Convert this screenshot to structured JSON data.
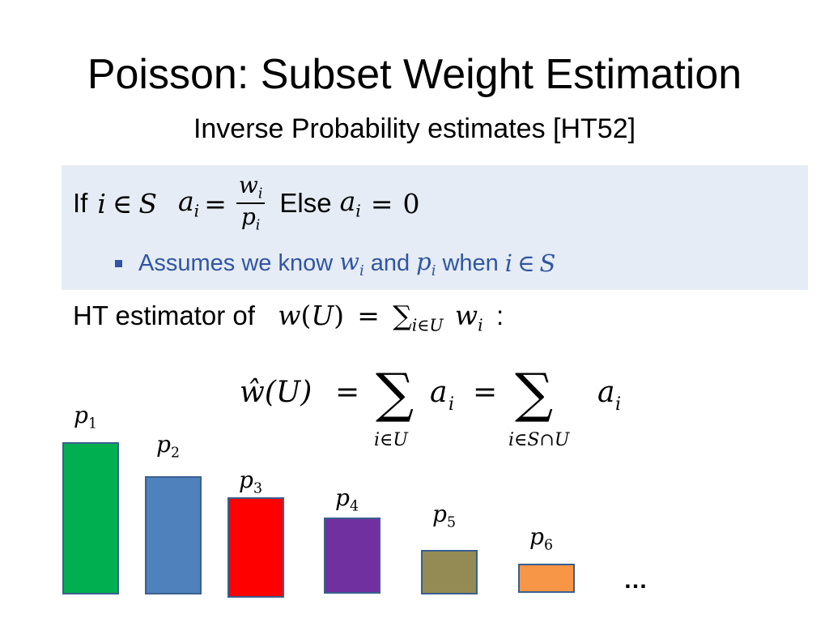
{
  "title": "Poisson: Subset Weight Estimation",
  "subtitle": "Inverse Probability estimates [HT52]",
  "rule": {
    "if_word": "If",
    "cond_var": "i",
    "cond_op": "∈",
    "cond_set": "S",
    "a_var": "a",
    "index": "i",
    "equals": "=",
    "num_var": "w",
    "den_var": "p",
    "else_word": "Else",
    "zero": "0"
  },
  "bullet": {
    "text1": "Assumes we know",
    "w": "w",
    "index": "i",
    "and_word": "and",
    "p": "p",
    "when_word": "when",
    "i": "i",
    "in": "∈",
    "S": "S"
  },
  "estimator": {
    "prefix": "HT estimator of",
    "w": "w",
    "paren_open": "(",
    "U": "U",
    "paren_close": ")",
    "equals": "=",
    "sum": "∑",
    "sub_range": "i∈U",
    "term": "w",
    "index": "i",
    "colon": ":"
  },
  "formula": {
    "lhs": "ŵ(U)",
    "eq1": "=",
    "sum": "∑",
    "term1": "a",
    "index": "i",
    "range1": "i∈U",
    "eq2": "=",
    "range2": "i∈S∩U",
    "term2": "a"
  },
  "bars": [
    {
      "label": "p",
      "sub": "1",
      "color": "#00b050"
    },
    {
      "label": "p",
      "sub": "2",
      "color": "#4f81bd"
    },
    {
      "label": "p",
      "sub": "3",
      "color": "#ff0000"
    },
    {
      "label": "p",
      "sub": "4",
      "color": "#7030a0"
    },
    {
      "label": "p",
      "sub": "5",
      "color": "#948a54"
    },
    {
      "label": "p",
      "sub": "6",
      "color": "#f79646"
    }
  ],
  "ellipsis": "…"
}
